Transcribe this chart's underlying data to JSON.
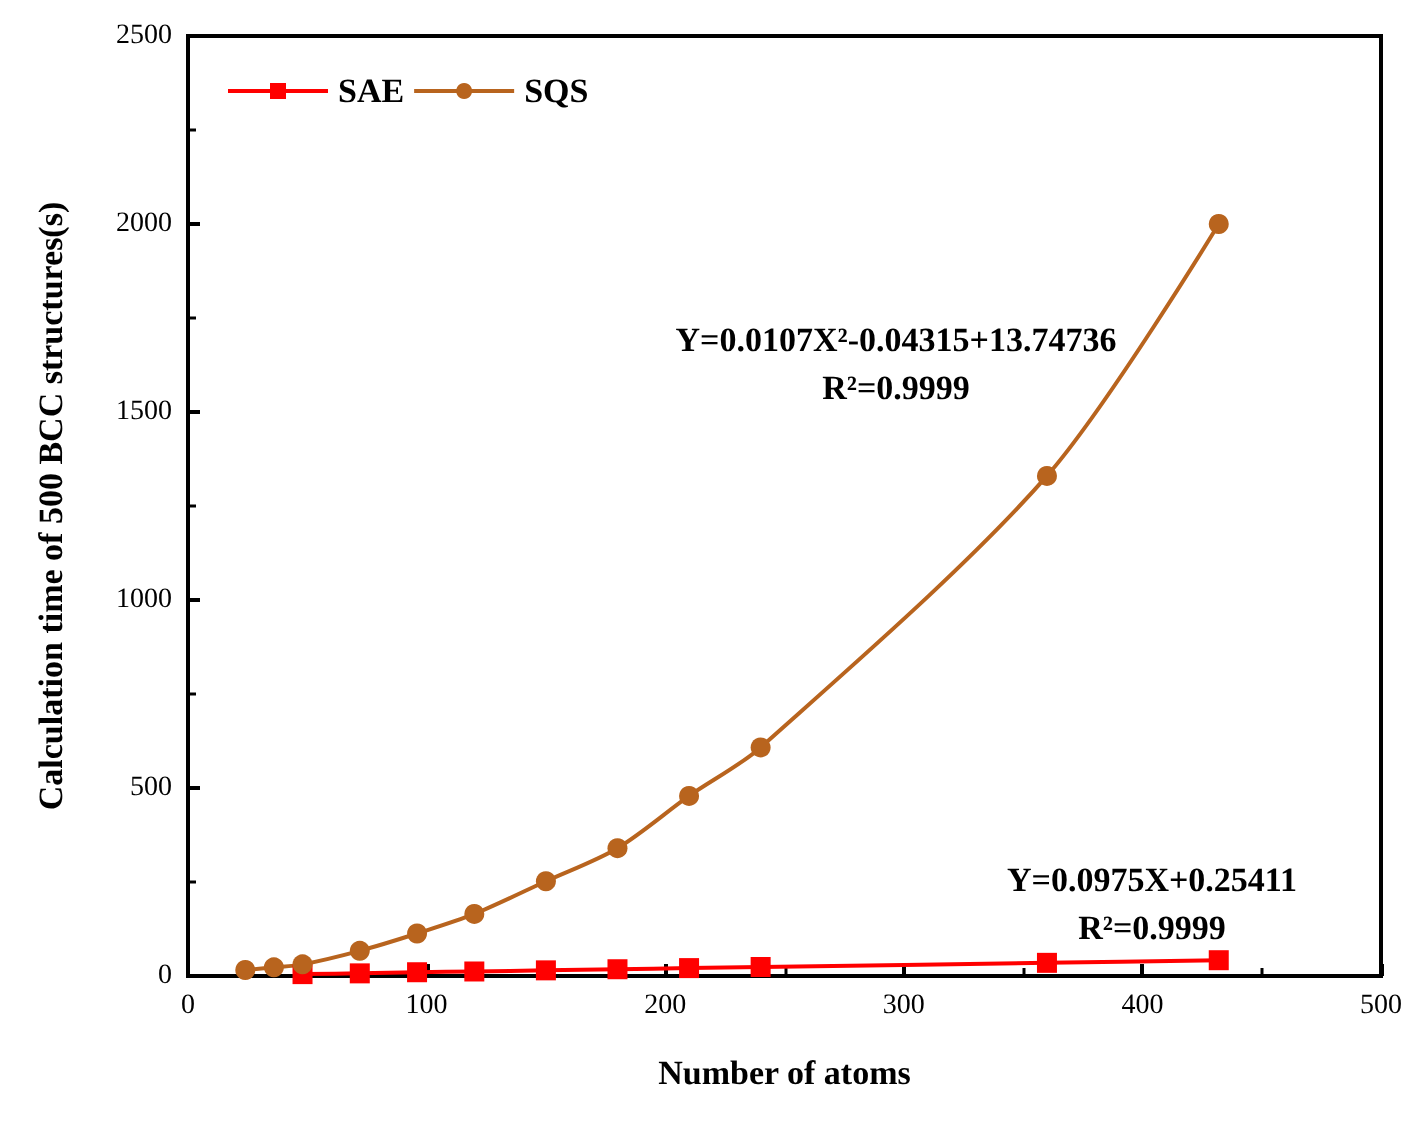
{
  "chart_data": {
    "type": "line",
    "xlabel": "Number of atoms",
    "ylabel": "Calculation time of 500 BCC structures(s)",
    "x": [
      24,
      36,
      48,
      72,
      96,
      120,
      150,
      180,
      210,
      240,
      360,
      432
    ],
    "series": [
      {
        "name": "SAE",
        "color": "#ff0000",
        "marker": "square",
        "values": [
          null,
          null,
          5,
          7,
          10,
          12,
          15,
          18,
          21,
          24,
          35,
          42
        ]
      },
      {
        "name": "SQS",
        "color": "#b8641e",
        "marker": "circle",
        "values": [
          16,
          23,
          31,
          67,
          113,
          165,
          252,
          340,
          479,
          608,
          1330,
          2000
        ]
      }
    ],
    "xlim": [
      0,
      500
    ],
    "xticks": [
      0,
      100,
      200,
      300,
      400,
      500
    ],
    "ylim": [
      0,
      2500
    ],
    "yticks": [
      0,
      500,
      1000,
      1500,
      2000,
      2500
    ],
    "grid": false,
    "legend": "top left",
    "annotations": [
      "Y=0.0107X²-0.04315+13.74736\nR²=0.9999",
      "Y=0.0975X+0.25411\nR²=0.9999"
    ]
  }
}
